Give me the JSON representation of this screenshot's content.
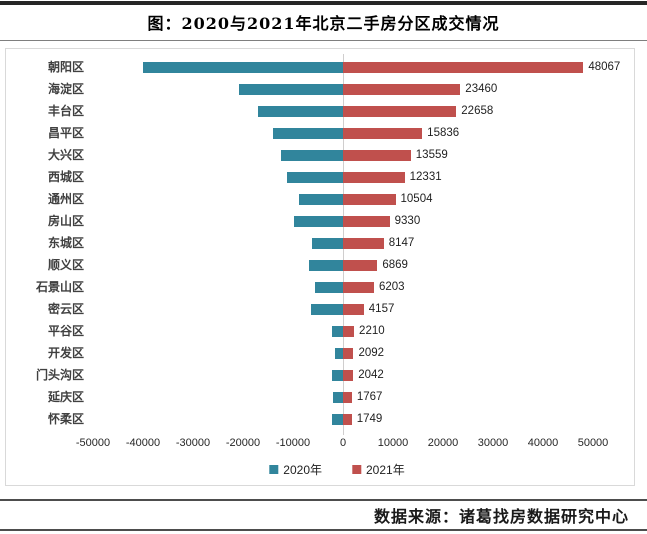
{
  "title": "图：2020与2021年北京二手房分区成交情况",
  "source": "数据来源：诸葛找房数据研究中心",
  "colors": {
    "series_2020": "#31859C",
    "series_2021": "#C0504D",
    "zero_line": "#D0CECE",
    "box_border": "#D9D9D9"
  },
  "legend": [
    {
      "label": "2020年",
      "color": "#31859C"
    },
    {
      "label": "2021年",
      "color": "#C0504D"
    }
  ],
  "chart_data": {
    "type": "bar",
    "orientation": "horizontal-diverging",
    "title": "图：2020与2021年北京二手房分区成交情况",
    "categories": [
      "朝阳区",
      "海淀区",
      "丰台区",
      "昌平区",
      "大兴区",
      "西城区",
      "通州区",
      "房山区",
      "东城区",
      "顺义区",
      "石景山区",
      "密云区",
      "平谷区",
      "开发区",
      "门头沟区",
      "延庆区",
      "怀柔区"
    ],
    "series": [
      {
        "name": "2020年",
        "color": "#31859C",
        "direction": "left",
        "values_estimated_from_bar_length": true,
        "values": [
          40000,
          20800,
          17000,
          14100,
          12500,
          11300,
          8900,
          9800,
          6200,
          6800,
          5600,
          6400,
          2300,
          1550,
          2150,
          1950,
          2150
        ]
      },
      {
        "name": "2021年",
        "color": "#C0504D",
        "direction": "right",
        "data_labels_visible": true,
        "values": [
          48067,
          23460,
          22658,
          15836,
          13559,
          12331,
          10504,
          9330,
          8147,
          6869,
          6203,
          4157,
          2210,
          2092,
          2042,
          1767,
          1749
        ]
      }
    ],
    "xlim": [
      -50000,
      50000
    ],
    "xticks": [
      -50000,
      -40000,
      -30000,
      -20000,
      -10000,
      0,
      10000,
      20000,
      30000,
      40000,
      50000
    ],
    "grid": "zero-line-only",
    "legend_position": "bottom"
  }
}
